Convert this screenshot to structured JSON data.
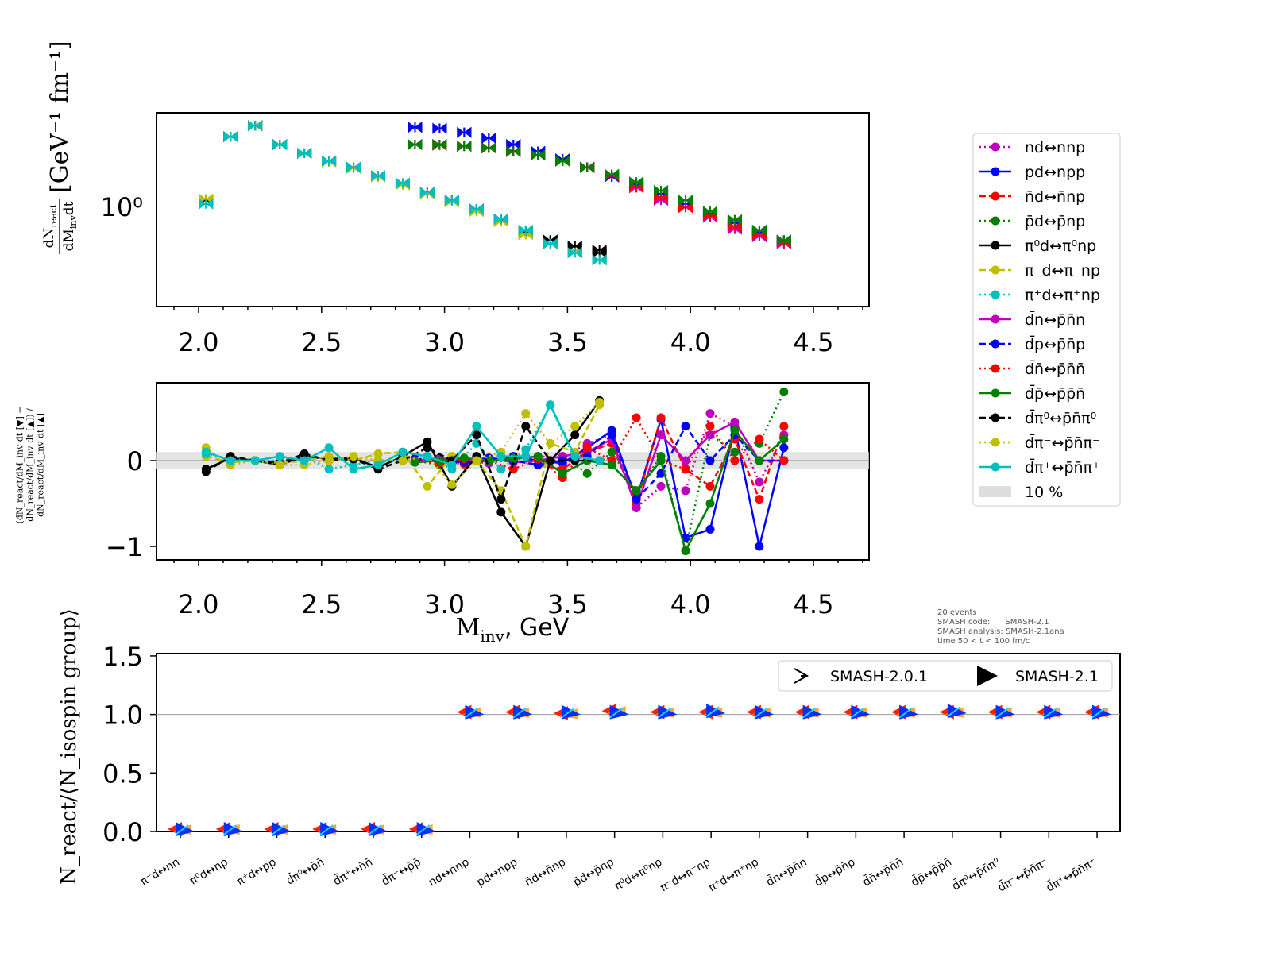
{
  "chart_data": [
    {
      "type": "scatter",
      "panel": "top",
      "yscale": "log",
      "ylabel": "dN_react / dM_inv dt  [GeV^-1 fm^-1]",
      "ylabel_num": "dN",
      "ylabel_num_sub": "react",
      "ylabel_den": "dM",
      "ylabel_den_sub": "inv",
      "ylabel_den_tail": "dt",
      "ylabel_units": "[GeV⁻¹ fm⁻¹]",
      "xlim": [
        1.83,
        4.73
      ],
      "ylim": [
        0.27,
        3.5
      ],
      "xticks": [
        "2.0",
        "2.5",
        "3.0",
        "3.5",
        "4.0",
        "4.5"
      ],
      "ytick_label": "10⁰"
    },
    {
      "type": "line",
      "panel": "ratio",
      "xlabel": "M_inv, GeV",
      "xlabel_main": "M",
      "xlabel_sub": "inv",
      "xlabel_tail": ", GeV",
      "ylabel": "(dN_react/dM_inv dt [▼] − dN_react/dM_inv dt [▲]) / dN_react/dM_inv dt [▲]",
      "xlim": [
        1.83,
        4.73
      ],
      "ylim": [
        -1.157,
        0.907
      ],
      "xticks": [
        "2.0",
        "2.5",
        "3.0",
        "3.5",
        "4.0",
        "4.5"
      ],
      "yticks": [
        "0",
        "−1"
      ],
      "band": 0.1
    },
    {
      "type": "scatter",
      "panel": "bottom",
      "ylabel": "N_react/⟨N_isospin group⟩",
      "ylim": [
        0,
        1.52
      ],
      "yticks": [
        "0.0",
        "0.5",
        "1.0",
        "1.5"
      ],
      "categories": [
        "π⁻d↔nn",
        "π⁰d↔np",
        "π⁺d↔pp",
        "d̄π⁰↔p̄n̄",
        "d̄π⁺↔n̄n̄",
        "d̄π⁻↔p̄p̄",
        "nd↔nnp",
        "pd↔npp",
        "n̄d↔n̄np",
        "p̄d↔p̄np",
        "π⁰d↔π⁰np",
        "π⁻d↔π⁻np",
        "π⁺d↔π⁺np",
        "d̄n↔p̄n̄n",
        "d̄p↔p̄n̄p",
        "d̄n̄↔p̄n̄n̄",
        "d̄p̄↔p̄p̄n̄",
        "d̄π⁰↔p̄n̄π⁰",
        "d̄π⁻↔p̄n̄π⁻",
        "d̄π⁺↔p̄n̄π⁺"
      ],
      "series": [
        {
          "name": "SMASH-2.0.1",
          "values": [
            0,
            0,
            0,
            0,
            0,
            0,
            1.0,
            1.0,
            0.99,
            1.01,
            1.0,
            1.0,
            1.0,
            1.0,
            1.0,
            1.0,
            1.0,
            1.0,
            1.0,
            1.0
          ]
        },
        {
          "name": "SMASH-2.1",
          "values": [
            0,
            0,
            0,
            0,
            0,
            0,
            1.0,
            1.0,
            1.0,
            1.0,
            1.0,
            1.01,
            1.0,
            1.0,
            1.0,
            1.0,
            1.01,
            1.0,
            1.0,
            1.0
          ]
        }
      ],
      "legend": {
        "placement": "top-right",
        "entries": [
          "SMASH-2.0.1",
          "SMASH-2.1"
        ]
      }
    }
  ],
  "series": [
    {
      "name": "nd↔nnp",
      "color": "#bf00bf",
      "dash": "2,4",
      "x0": 2.88,
      "y": [
        2.3,
        2.3,
        2.25,
        2.2,
        2.1,
        2.0,
        1.85,
        1.7,
        1.5,
        1.3,
        1.1,
        1.0,
        0.88,
        0.75,
        0.68,
        0.62
      ],
      "r": [
        0,
        0.02,
        0,
        -0.03,
        0.02,
        0.05,
        0.03,
        0.2,
        0.3,
        -0.55,
        -0.3,
        -0.35,
        0.55,
        0.4,
        -0.25,
        0.3
      ]
    },
    {
      "name": "pd↔npp",
      "color": "#0000ff",
      "dash": "",
      "x0": 2.88,
      "y": [
        2.9,
        2.85,
        2.7,
        2.5,
        2.3,
        2.1,
        1.9,
        1.7,
        1.5,
        1.35,
        1.2,
        1.05,
        0.92,
        0.82,
        0.72,
        0.64
      ],
      "r": [
        0,
        0.03,
        -0.02,
        0.0,
        0.05,
        0.0,
        -0.03,
        0.15,
        0.35,
        -0.45,
        0.48,
        -0.9,
        -0.8,
        0.38,
        -1.0,
        0.15
      ]
    },
    {
      "name": "n̄d↔n̄np",
      "color": "#ff0000",
      "dash": "8,4",
      "x0": 2.88,
      "y": [
        2.3,
        2.28,
        2.25,
        2.2,
        2.1,
        2.0,
        1.85,
        1.7,
        1.52,
        1.32,
        1.15,
        1.0,
        0.9,
        0.78,
        0.7,
        0.63
      ],
      "r": [
        0.02,
        0.0,
        -0.04,
        0.02,
        0.0,
        -0.05,
        -0.1,
        0.1,
        0.2,
        -0.5,
        0.5,
        -0.1,
        -0.3,
        0.25,
        -0.45,
        0.4
      ]
    },
    {
      "name": "p̄d↔p̄np",
      "color": "#008000",
      "dash": "2,4",
      "x0": 2.88,
      "y": [
        2.3,
        2.3,
        2.25,
        2.2,
        2.1,
        2.0,
        1.85,
        1.7,
        1.55,
        1.4,
        1.25,
        1.1,
        0.95,
        0.85,
        0.74,
        0.65
      ],
      "r": [
        0,
        -0.05,
        0.02,
        0,
        0.03,
        0.0,
        0.05,
        -0.15,
        0.1,
        -0.35,
        0.05,
        -1.05,
        0.3,
        0.1,
        0.2,
        0.8
      ]
    },
    {
      "name": "π⁰d↔π⁰np",
      "color": "#000000",
      "dash": "",
      "x0": 2.03,
      "y": [
        1.1,
        2.55,
        2.95,
        2.3,
        2.05,
        1.85,
        1.7,
        1.52,
        1.38,
        1.22,
        1.1,
        0.98,
        0.85,
        0.72,
        0.65,
        0.6,
        0.57
      ],
      "r": [
        -0.1,
        0.03,
        0.0,
        -0.05,
        0.05,
        0.02,
        0.03,
        -0.08,
        0.05,
        0.22,
        -0.3,
        0.05,
        -0.6,
        -1.0,
        0.0,
        0.3,
        0.7
      ]
    },
    {
      "name": "π⁻d↔π⁻np",
      "color": "#bfbf00",
      "dash": "8,4",
      "x0": 2.03,
      "y": [
        1.1,
        2.55,
        2.95,
        2.3,
        2.05,
        1.83,
        1.68,
        1.5,
        1.35,
        1.2,
        1.08,
        0.95,
        0.83,
        0.7,
        0.62,
        0.57,
        0.5
      ],
      "r": [
        0.05,
        -0.02,
        0.0,
        -0.03,
        0.0,
        0.05,
        0.0,
        0.08,
        0.1,
        -0.3,
        0.05,
        0.0,
        -0.35,
        -1.0,
        0.2,
        0.1,
        0.65
      ]
    },
    {
      "name": "π⁺d↔π⁺np",
      "color": "#00bfbf",
      "dash": "2,4",
      "x0": 2.03,
      "y": [
        1.05,
        2.55,
        2.95,
        2.3,
        2.05,
        1.85,
        1.7,
        1.52,
        1.38,
        1.22,
        1.1,
        0.98,
        0.86,
        0.74,
        0.62,
        0.55,
        0.5
      ],
      "r": [
        0.08,
        0.02,
        0.0,
        0.0,
        0.05,
        -0.1,
        -0.05,
        0.0,
        0.0,
        0.05,
        -0.1,
        0.2,
        -0.1,
        0.13,
        0.65,
        0.0,
        0.0
      ]
    },
    {
      "name": "d̄n↔p̄n̄n",
      "color": "#bf00bf",
      "dash": "",
      "x0": 2.88,
      "y": [
        2.3,
        2.3,
        2.25,
        2.2,
        2.1,
        2.0,
        1.85,
        1.7,
        1.5,
        1.3,
        1.12,
        1.0,
        0.88,
        0.76,
        0.68,
        0.62
      ],
      "r": [
        0,
        0.02,
        0.0,
        0.03,
        -0.02,
        0.0,
        0.05,
        0.1,
        0.25,
        -0.55,
        0.3,
        0.0,
        0.3,
        0.45,
        0.0,
        0.0
      ]
    },
    {
      "name": "d̄p↔p̄n̄p",
      "color": "#0000ff",
      "dash": "8,4",
      "x0": 2.88,
      "y": [
        2.88,
        2.85,
        2.7,
        2.5,
        2.3,
        2.1,
        1.9,
        1.7,
        1.5,
        1.35,
        1.2,
        1.05,
        0.92,
        0.82,
        0.72,
        0.65
      ],
      "r": [
        0.02,
        0.0,
        -0.02,
        0.03,
        0.0,
        -0.05,
        0.0,
        0.05,
        0.3,
        -0.45,
        -0.15,
        0.4,
        0.0,
        0.3,
        0.0,
        0.0
      ]
    },
    {
      "name": "d̄n̄↔p̄n̄n̄",
      "color": "#ff0000",
      "dash": "2,4",
      "x0": 2.88,
      "y": [
        2.3,
        2.3,
        2.25,
        2.2,
        2.1,
        2.0,
        1.85,
        1.7,
        1.52,
        1.32,
        1.15,
        1.0,
        0.9,
        0.78,
        0.7,
        0.63
      ],
      "r": [
        0.0,
        -0.03,
        0.02,
        0.0,
        -0.1,
        0.02,
        -0.2,
        0.15,
        0.0,
        0.5,
        0.0,
        -0.1,
        0.4,
        0.0,
        0.25,
        0.0
      ]
    },
    {
      "name": "d̄p̄↔p̄p̄n̄",
      "color": "#008000",
      "dash": "",
      "x0": 2.88,
      "y": [
        2.3,
        2.3,
        2.25,
        2.2,
        2.1,
        2.0,
        1.85,
        1.7,
        1.55,
        1.4,
        1.25,
        1.1,
        0.95,
        0.85,
        0.74,
        0.65
      ],
      "r": [
        -0.02,
        0.0,
        0.03,
        0.0,
        0.02,
        0.05,
        -0.15,
        0.0,
        -0.05,
        -0.35,
        0.0,
        -1.05,
        -0.5,
        0.35,
        0.0,
        0.25
      ]
    },
    {
      "name": "d̄π⁰↔p̄n̄π⁰",
      "color": "#000000",
      "dash": "8,4",
      "x0": 2.03,
      "y": [
        1.1,
        2.55,
        2.95,
        2.3,
        2.05,
        1.85,
        1.7,
        1.52,
        1.38,
        1.22,
        1.1,
        0.98,
        0.85,
        0.72,
        0.65,
        0.6,
        0.55
      ],
      "r": [
        -0.13,
        0.05,
        0.0,
        -0.03,
        0.08,
        0.0,
        0.02,
        -0.1,
        0.0,
        0.15,
        0.0,
        0.3,
        -0.45,
        0.4,
        0.0,
        0.0,
        0.0
      ]
    },
    {
      "name": "d̄π⁻↔p̄n̄π⁻",
      "color": "#bfbf00",
      "dash": "2,4",
      "x0": 2.03,
      "y": [
        1.12,
        2.55,
        2.95,
        2.3,
        2.05,
        1.83,
        1.68,
        1.5,
        1.35,
        1.2,
        1.08,
        0.95,
        0.83,
        0.7,
        0.62,
        0.55,
        0.5
      ],
      "r": [
        0.15,
        -0.05,
        0.0,
        -0.05,
        -0.05,
        0.0,
        0.05,
        0.0,
        0.0,
        0.05,
        -0.28,
        0.0,
        0.1,
        0.55,
        0.2,
        0.4,
        0.68
      ]
    },
    {
      "name": "d̄π⁺↔p̄n̄π⁺",
      "color": "#00bfbf",
      "dash": "",
      "x0": 2.03,
      "y": [
        1.05,
        2.55,
        2.95,
        2.3,
        2.05,
        1.85,
        1.7,
        1.52,
        1.38,
        1.22,
        1.1,
        0.98,
        0.86,
        0.74,
        0.62,
        0.55,
        0.5
      ],
      "r": [
        0.1,
        0.0,
        0.0,
        0.05,
        0.0,
        0.15,
        -0.1,
        -0.05,
        0.1,
        0.05,
        -0.05,
        0.4,
        0.05,
        0.05,
        0.65,
        0.05,
        0.0
      ]
    }
  ],
  "legend": {
    "band_label": "10 %",
    "placement": "right"
  },
  "info": {
    "line1": "20 events",
    "line2": "SMASH code:      SMASH-2.1",
    "line3": "SMASH analysis: SMASH-2.1ana",
    "line4": "time 50 < t < 100 fm/c"
  }
}
